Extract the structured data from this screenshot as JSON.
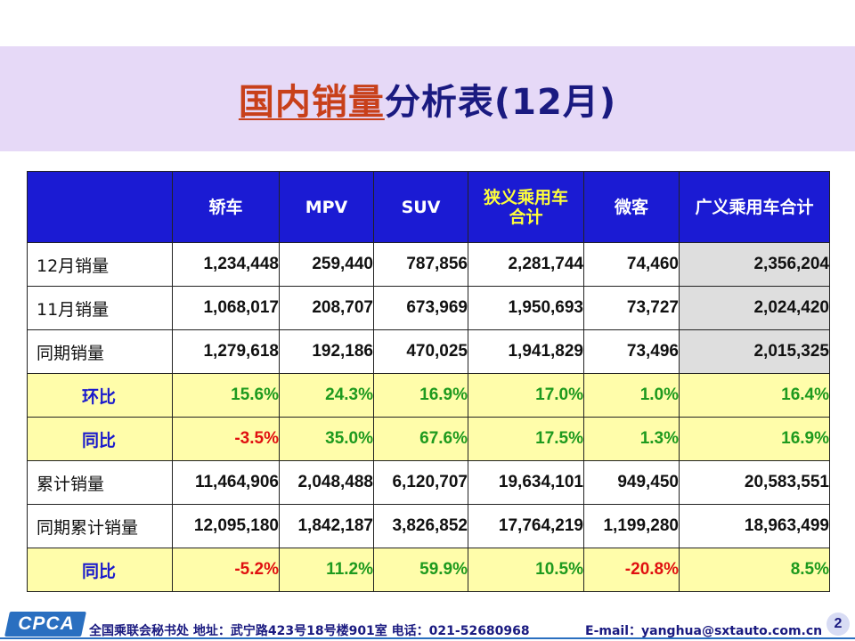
{
  "title": {
    "highlight": "国内销量",
    "rest": "分析表(12月)"
  },
  "table": {
    "columns": [
      "轿车",
      "MPV",
      "SUV",
      "狭义乘用车合计",
      "微客",
      "广义乘用车合计"
    ],
    "rows": [
      {
        "label": "12月销量",
        "type": "sales",
        "values": [
          "1,234,448",
          "259,440",
          "787,856",
          "2,281,744",
          "74,460",
          "2,356,204"
        ]
      },
      {
        "label": "11月销量",
        "type": "sales",
        "values": [
          "1,068,017",
          "208,707",
          "673,969",
          "1,950,693",
          "73,727",
          "2,024,420"
        ]
      },
      {
        "label": "同期销量",
        "type": "sales",
        "values": [
          "1,279,618",
          "192,186",
          "470,025",
          "1,941,829",
          "73,496",
          "2,015,325"
        ]
      },
      {
        "label": "环比",
        "type": "ratio",
        "values": [
          "15.6%",
          "24.3%",
          "16.9%",
          "17.0%",
          "1.0%",
          "16.4%"
        ]
      },
      {
        "label": "同比",
        "type": "ratio",
        "values": [
          "-3.5%",
          "35.0%",
          "67.6%",
          "17.5%",
          "1.3%",
          "16.9%"
        ]
      },
      {
        "label": "累计销量",
        "type": "sales",
        "values": [
          "11,464,906",
          "2,048,488",
          "6,120,707",
          "19,634,101",
          "949,450",
          "20,583,551"
        ]
      },
      {
        "label": "同期累计销量",
        "type": "sales",
        "values": [
          "12,095,180",
          "1,842,187",
          "3,826,852",
          "17,764,219",
          "1,199,280",
          "18,963,499"
        ]
      },
      {
        "label": "同比",
        "type": "ratio",
        "values": [
          "-5.2%",
          "11.2%",
          "59.9%",
          "10.5%",
          "-20.8%",
          "8.5%"
        ]
      }
    ]
  },
  "footer": {
    "logo": "CPCA",
    "address": "全国乘联会秘书处  地址：武宁路423号18号楼901室   电话：021-52680968",
    "email": "E-mail：yanghua@sxtauto.com.cn",
    "page": "2"
  },
  "colors": {
    "header_bg": "#1b1bd3",
    "title_band": "#e6d9f7",
    "ratio_bg": "#fffdaa",
    "positive": "#1e9a1e",
    "negative": "#e01010"
  }
}
